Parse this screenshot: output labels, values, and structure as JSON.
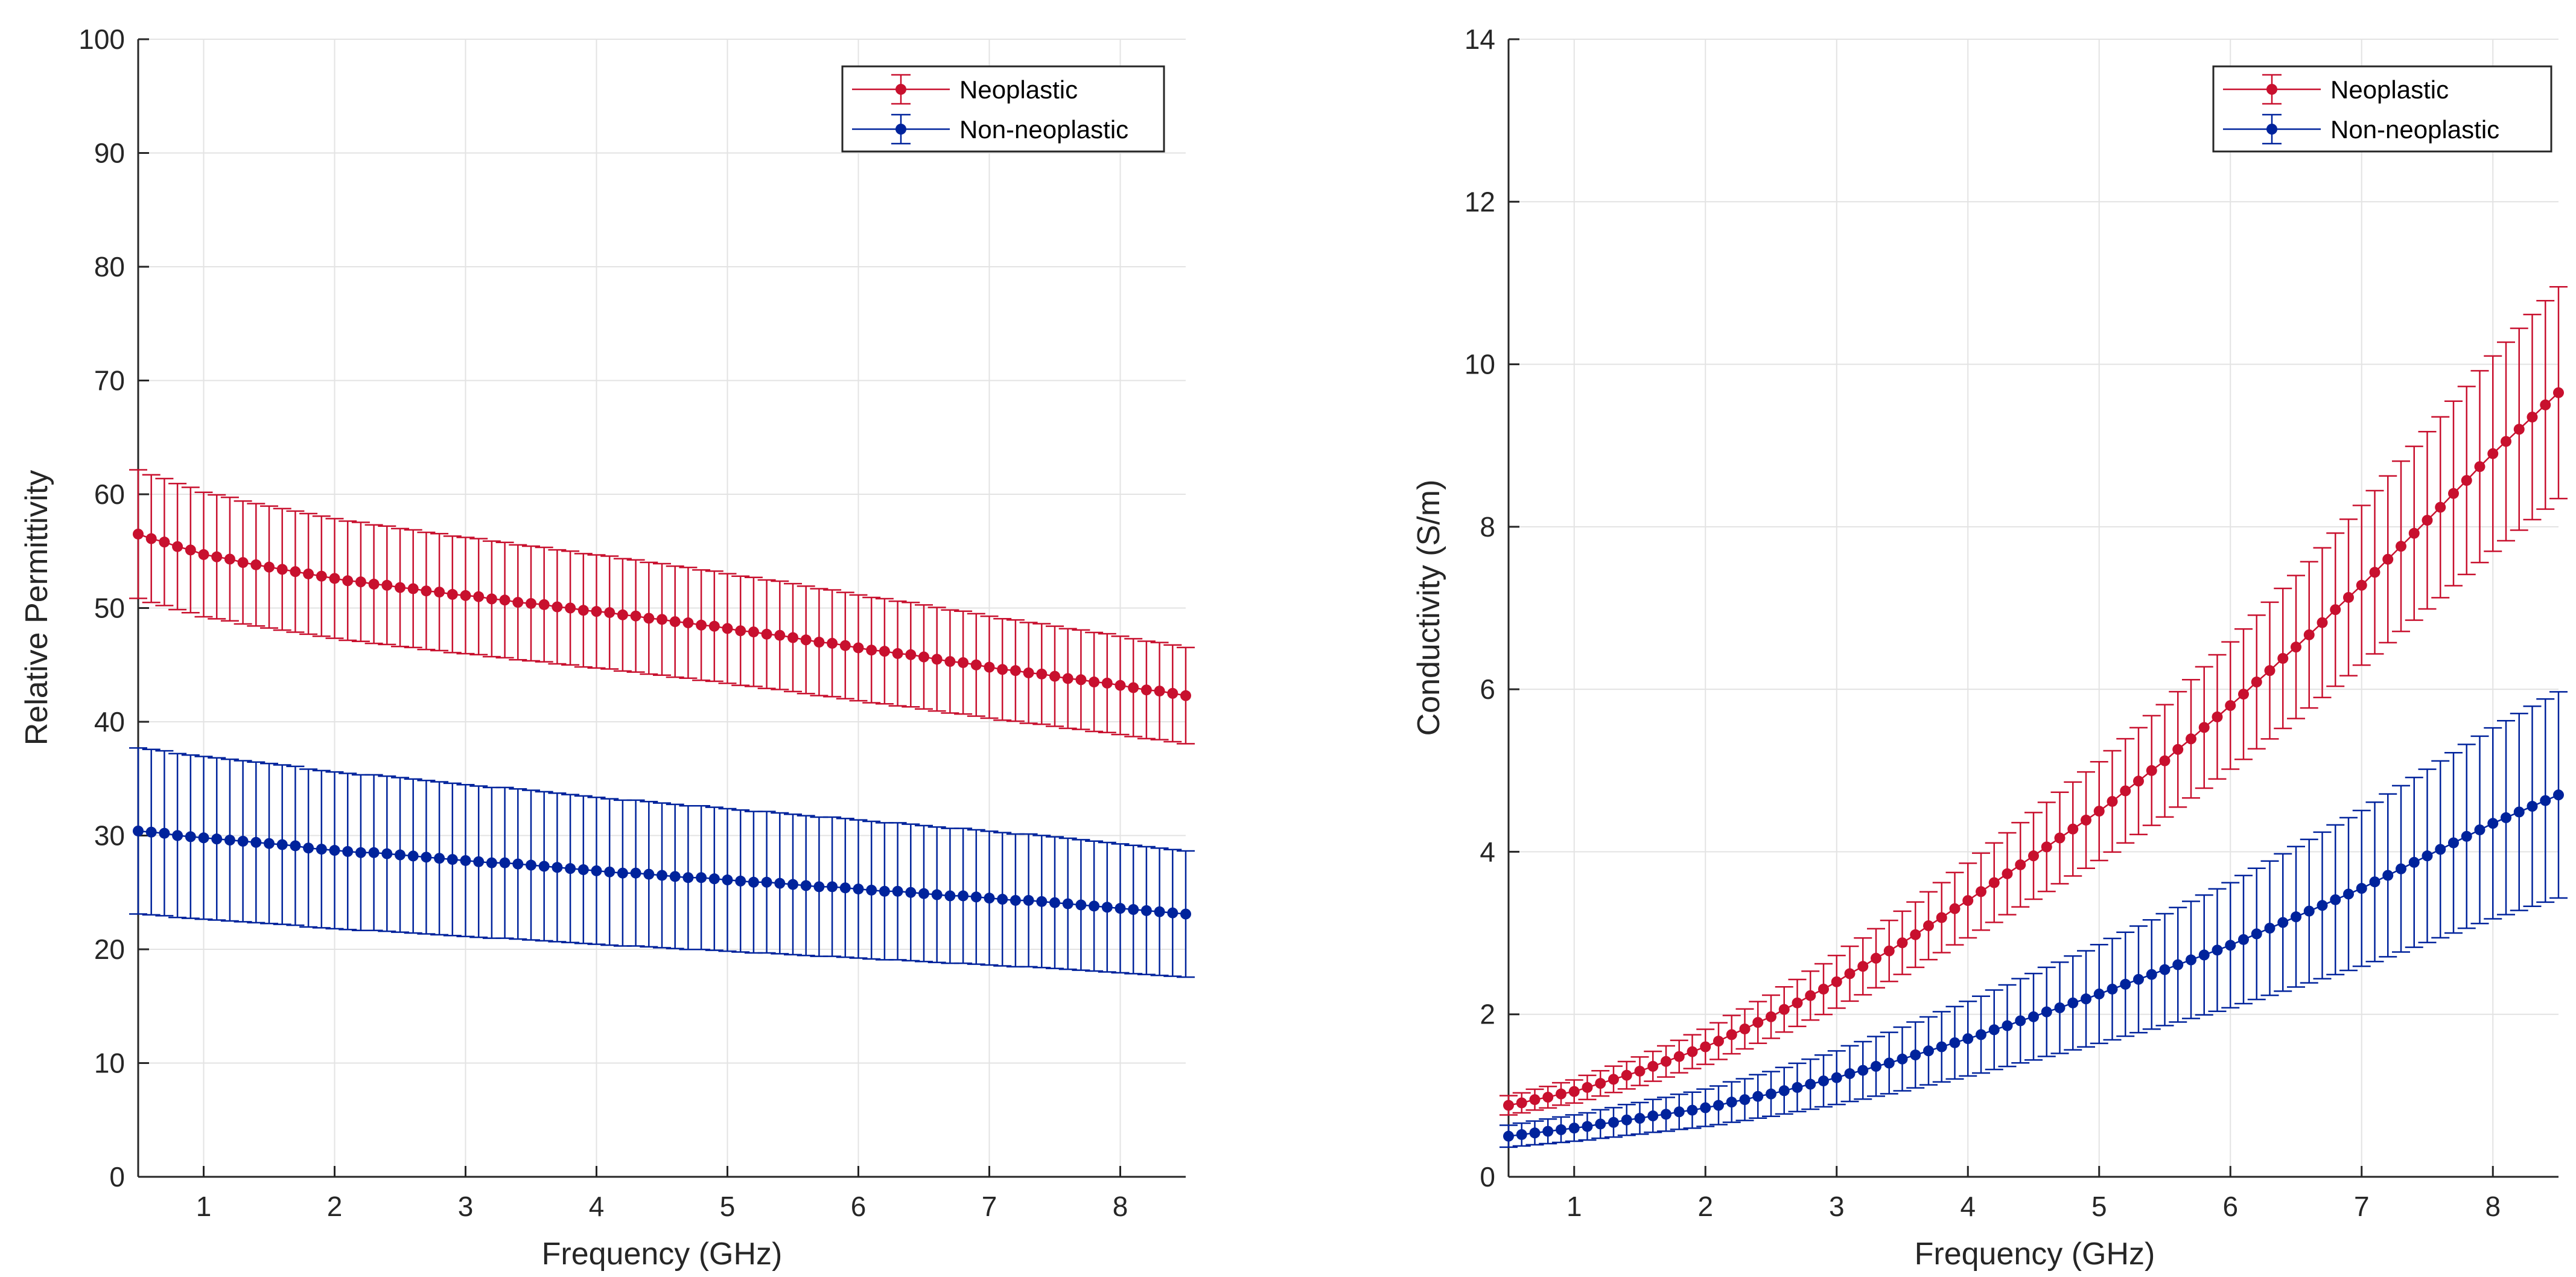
{
  "chart_data": [
    {
      "type": "line",
      "error_bars": true,
      "xlabel": "Frequency (GHz)",
      "ylabel": "Relative Permittivity",
      "xlim": [
        0.5,
        8.5
      ],
      "ylim": [
        0,
        100
      ],
      "xticks": [
        1,
        2,
        3,
        4,
        5,
        6,
        7,
        8
      ],
      "yticks": [
        0,
        10,
        20,
        30,
        40,
        50,
        60,
        70,
        80,
        90,
        100
      ],
      "grid": true,
      "legend_position": "top-right",
      "x_start": 0.5,
      "x_step": 0.1,
      "series": [
        {
          "name": "Neoplastic",
          "color": "#c8102e",
          "std_fraction": 0.1,
          "values": [
            56.5,
            56.1,
            55.8,
            55.4,
            55.1,
            54.7,
            54.5,
            54.3,
            54.0,
            53.8,
            53.6,
            53.4,
            53.2,
            53.0,
            52.8,
            52.6,
            52.4,
            52.3,
            52.1,
            52.0,
            51.8,
            51.7,
            51.5,
            51.4,
            51.2,
            51.1,
            51.0,
            50.8,
            50.7,
            50.5,
            50.4,
            50.3,
            50.1,
            50.0,
            49.8,
            49.7,
            49.6,
            49.4,
            49.3,
            49.1,
            49.0,
            48.8,
            48.7,
            48.5,
            48.4,
            48.2,
            48.0,
            47.9,
            47.7,
            47.6,
            47.4,
            47.2,
            47.0,
            46.9,
            46.7,
            46.5,
            46.3,
            46.2,
            46.0,
            45.9,
            45.7,
            45.5,
            45.3,
            45.2,
            45.0,
            44.8,
            44.6,
            44.5,
            44.3,
            44.2,
            44.0,
            43.8,
            43.7,
            43.5,
            43.4,
            43.2,
            43.0,
            42.8,
            42.7,
            42.5,
            42.3
          ]
        },
        {
          "name": "Non-neoplastic",
          "color": "#00239c",
          "std_fraction": 0.24,
          "values": [
            30.4,
            30.3,
            30.2,
            30.0,
            29.9,
            29.8,
            29.7,
            29.6,
            29.5,
            29.4,
            29.3,
            29.2,
            29.1,
            28.9,
            28.8,
            28.7,
            28.6,
            28.5,
            28.5,
            28.4,
            28.3,
            28.2,
            28.1,
            28.0,
            27.9,
            27.8,
            27.7,
            27.6,
            27.6,
            27.5,
            27.4,
            27.3,
            27.2,
            27.1,
            27.0,
            26.9,
            26.8,
            26.7,
            26.7,
            26.6,
            26.5,
            26.4,
            26.3,
            26.3,
            26.2,
            26.1,
            26.0,
            25.9,
            25.9,
            25.8,
            25.7,
            25.6,
            25.5,
            25.5,
            25.4,
            25.3,
            25.2,
            25.1,
            25.1,
            25.0,
            24.9,
            24.8,
            24.7,
            24.7,
            24.6,
            24.5,
            24.4,
            24.3,
            24.3,
            24.2,
            24.1,
            24.0,
            23.9,
            23.8,
            23.7,
            23.6,
            23.5,
            23.4,
            23.3,
            23.2,
            23.1
          ]
        }
      ]
    },
    {
      "type": "line",
      "error_bars": true,
      "xlabel": "Frequency (GHz)",
      "ylabel": "Conductivity (S/m)",
      "xlim": [
        0.5,
        8.5
      ],
      "ylim": [
        0,
        14
      ],
      "xticks": [
        1,
        2,
        3,
        4,
        5,
        6,
        7,
        8
      ],
      "yticks": [
        0,
        2,
        4,
        6,
        8,
        10,
        12,
        14
      ],
      "grid": true,
      "legend_position": "top-right",
      "x_start": 0.5,
      "x_step": 0.1,
      "series": [
        {
          "name": "Neoplastic",
          "color": "#c8102e",
          "std_fraction": 0.135,
          "values": [
            0.88,
            0.91,
            0.95,
            0.98,
            1.02,
            1.05,
            1.1,
            1.15,
            1.2,
            1.25,
            1.3,
            1.36,
            1.42,
            1.48,
            1.54,
            1.6,
            1.67,
            1.75,
            1.82,
            1.9,
            1.97,
            2.06,
            2.14,
            2.23,
            2.31,
            2.4,
            2.5,
            2.59,
            2.69,
            2.78,
            2.88,
            2.98,
            3.09,
            3.19,
            3.3,
            3.4,
            3.51,
            3.62,
            3.73,
            3.84,
            3.95,
            4.06,
            4.17,
            4.28,
            4.39,
            4.5,
            4.62,
            4.75,
            4.87,
            5.0,
            5.12,
            5.26,
            5.39,
            5.53,
            5.66,
            5.8,
            5.94,
            6.09,
            6.23,
            6.38,
            6.52,
            6.67,
            6.82,
            6.98,
            7.13,
            7.28,
            7.44,
            7.6,
            7.76,
            7.92,
            8.08,
            8.24,
            8.41,
            8.57,
            8.74,
            8.9,
            9.05,
            9.2,
            9.35,
            9.5,
            9.65
          ]
        },
        {
          "name": "Non-neoplastic",
          "color": "#00239c",
          "std_fraction": 0.27,
          "values": [
            0.5,
            0.52,
            0.54,
            0.56,
            0.58,
            0.6,
            0.62,
            0.65,
            0.67,
            0.7,
            0.72,
            0.75,
            0.77,
            0.8,
            0.82,
            0.85,
            0.88,
            0.92,
            0.95,
            0.99,
            1.02,
            1.06,
            1.1,
            1.14,
            1.18,
            1.22,
            1.27,
            1.31,
            1.36,
            1.4,
            1.45,
            1.5,
            1.55,
            1.6,
            1.65,
            1.7,
            1.75,
            1.81,
            1.86,
            1.92,
            1.97,
            2.03,
            2.08,
            2.14,
            2.19,
            2.25,
            2.31,
            2.37,
            2.43,
            2.49,
            2.55,
            2.61,
            2.67,
            2.73,
            2.79,
            2.85,
            2.92,
            2.99,
            3.06,
            3.13,
            3.2,
            3.27,
            3.34,
            3.41,
            3.48,
            3.55,
            3.63,
            3.71,
            3.79,
            3.87,
            3.95,
            4.03,
            4.11,
            4.19,
            4.27,
            4.35,
            4.42,
            4.49,
            4.56,
            4.63,
            4.7
          ]
        }
      ]
    }
  ]
}
